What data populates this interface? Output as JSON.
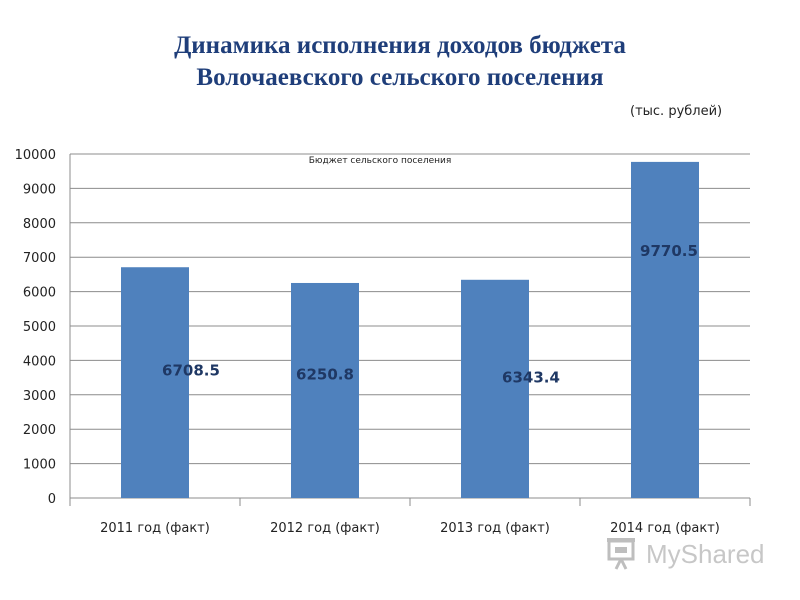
{
  "header": {
    "title_line1": "Динамика исполнения доходов  бюджета",
    "title_line2": "Волочаевского сельского поселения",
    "unit": "(тыс. рублей)"
  },
  "chart_data": {
    "type": "bar",
    "title": "Бюджет сельского поселения",
    "categories": [
      "2011 год (факт)",
      "2012 год (факт)",
      "2013 год (факт)",
      "2014 год (факт)"
    ],
    "values": [
      6708.5,
      6250.8,
      6343.4,
      9770.5
    ],
    "data_labels": [
      "6708.5",
      "6250.8",
      "6343.4",
      "9770.5"
    ],
    "ylim": [
      0,
      10000
    ],
    "yticks": [
      0,
      1000,
      2000,
      3000,
      4000,
      5000,
      6000,
      7000,
      8000,
      9000,
      10000
    ],
    "xlabel": "",
    "ylabel": "",
    "grid": true,
    "legend": "none",
    "colors": {
      "bar": "#4f81bd",
      "label": "#1f3864",
      "grid": "#8c8c8c"
    }
  },
  "watermark": {
    "text": "MyShared",
    "icon": "projector-icon"
  }
}
